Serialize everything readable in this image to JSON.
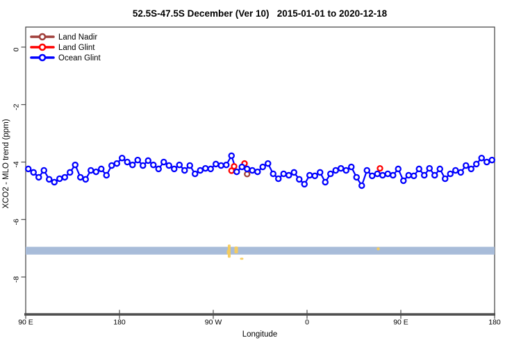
{
  "title": "52.5S-47.5S December (Ver 10)   2015-01-01 to 2020-12-18",
  "axes": {
    "x_label": "Longitude",
    "y_label": "XCO2 - MLO trend (ppm)",
    "x_ticks": [
      {
        "pos": 90,
        "label": "90 E"
      },
      {
        "pos": 180,
        "label": "180"
      },
      {
        "pos": 270,
        "label": "90 W"
      },
      {
        "pos": 360,
        "label": "0"
      },
      {
        "pos": 450,
        "label": "90 E"
      },
      {
        "pos": 540,
        "label": "180"
      }
    ],
    "y_ticks": [
      {
        "pos": 0,
        "label": "0"
      },
      {
        "pos": -2,
        "label": "-2"
      },
      {
        "pos": -4,
        "label": "-4"
      },
      {
        "pos": -6,
        "label": "-6"
      },
      {
        "pos": -8,
        "label": "-8"
      }
    ]
  },
  "legend": [
    {
      "label": "Land Nadir",
      "color": "#A0403C"
    },
    {
      "label": "Land Glint",
      "color": "#FF0000"
    },
    {
      "label": "Ocean Glint",
      "color": "#0000FF"
    }
  ],
  "colors": {
    "band": "#A8BCD9",
    "yellow_marks": "#F5CB5C",
    "axis": "#3C3C3C"
  },
  "chart_data": {
    "type": "line",
    "title": "52.5S-47.5S December (Ver 10)   2015-01-01 to 2020-12-18",
    "xlabel": "Longitude",
    "ylabel": "XCO2 - MLO trend (ppm)",
    "xlim": [
      90,
      540
    ],
    "ylim": [
      -9.3,
      0.6
    ],
    "x_axis_note": "longitude wraps eastward: 90E, 180, 90W, 0, 90E, 180 plotted as 90..540",
    "grid": false,
    "legend_position": "top-left",
    "series": [
      {
        "name": "Ocean Glint",
        "color": "#0000FF",
        "marker": "open-circle",
        "line": true,
        "x": [
          92.5,
          97.5,
          102.5,
          107.5,
          112.5,
          117.5,
          122.5,
          127.5,
          132.5,
          137.5,
          142.5,
          147.5,
          152.5,
          157.5,
          162.5,
          167.5,
          172.5,
          177.5,
          182.5,
          187.5,
          192.5,
          197.5,
          202.5,
          207.5,
          212.5,
          217.5,
          222.5,
          227.5,
          232.5,
          237.5,
          242.5,
          247.5,
          252.5,
          257.5,
          262.5,
          267.5,
          272.5,
          277.5,
          282.5,
          287.5,
          292.5,
          297.5,
          302.5,
          307.5,
          312.5,
          317.5,
          322.5,
          327.5,
          332.5,
          337.5,
          342.5,
          347.5,
          352.5,
          357.5,
          362.5,
          367.5,
          372.5,
          377.5,
          382.5,
          387.5,
          392.5,
          397.5,
          402.5,
          407.5,
          412.5,
          417.5,
          422.5,
          427.5,
          432.5,
          437.5,
          442.5,
          447.5,
          452.5,
          457.5,
          462.5,
          467.5,
          472.5,
          477.5,
          482.5,
          487.5,
          492.5,
          497.5,
          502.5,
          507.5,
          512.5,
          517.5,
          522.5,
          527.5,
          532.5,
          537.5
        ],
        "y": [
          -4.24,
          -4.36,
          -4.53,
          -4.29,
          -4.6,
          -4.7,
          -4.58,
          -4.53,
          -4.36,
          -4.1,
          -4.53,
          -4.6,
          -4.29,
          -4.34,
          -4.24,
          -4.46,
          -4.12,
          -4.05,
          -3.86,
          -4.0,
          -4.1,
          -3.93,
          -4.12,
          -3.95,
          -4.1,
          -4.24,
          -4.0,
          -4.12,
          -4.24,
          -4.1,
          -4.29,
          -4.12,
          -4.41,
          -4.29,
          -4.22,
          -4.24,
          -4.07,
          -4.12,
          -4.1,
          -3.78,
          -4.34,
          -4.17,
          -4.24,
          -4.29,
          -4.34,
          -4.17,
          -4.05,
          -4.41,
          -4.58,
          -4.41,
          -4.46,
          -4.36,
          -4.6,
          -4.77,
          -4.46,
          -4.48,
          -4.36,
          -4.7,
          -4.41,
          -4.29,
          -4.22,
          -4.29,
          -4.17,
          -4.53,
          -4.82,
          -4.29,
          -4.48,
          -4.41,
          -4.46,
          -4.41,
          -4.46,
          -4.24,
          -4.65,
          -4.46,
          -4.48,
          -4.24,
          -4.46,
          -4.22,
          -4.46,
          -4.24,
          -4.58,
          -4.41,
          -4.29,
          -4.36,
          -4.12,
          -4.24,
          -4.07,
          -3.86,
          -4.0,
          -3.93
        ]
      },
      {
        "name": "Land Glint",
        "color": "#FF0000",
        "marker": "open-circle",
        "line": false,
        "x": [
          287.5,
          290,
          300,
          430
        ],
        "y": [
          -4.3,
          -4.15,
          -4.05,
          -4.22
        ]
      },
      {
        "name": "Land Nadir",
        "color": "#A0403C",
        "marker": "open-circle",
        "line": false,
        "x": [
          302.5
        ],
        "y": [
          -4.42
        ]
      }
    ],
    "band": {
      "x_from": 90,
      "x_to": 540,
      "y_from": -6.95,
      "y_to": -7.22,
      "color": "#A8BCD9"
    },
    "yellow_marks": [
      {
        "x": 285.3,
        "w_deg": 2.7,
        "v_top": -6.87,
        "v_h": 0.46
      },
      {
        "x": 284.0,
        "w_deg": 2.0,
        "v_top": -7.06,
        "v_h": 0.15
      },
      {
        "x": 292.0,
        "w_deg": 3.3,
        "v_top": -6.94,
        "v_h": 0.24
      },
      {
        "x": 297.3,
        "w_deg": 3.3,
        "v_top": -7.33,
        "v_h": 0.07
      },
      {
        "x": 428.3,
        "w_deg": 2.7,
        "v_top": -6.97,
        "v_h": 0.1
      }
    ]
  }
}
